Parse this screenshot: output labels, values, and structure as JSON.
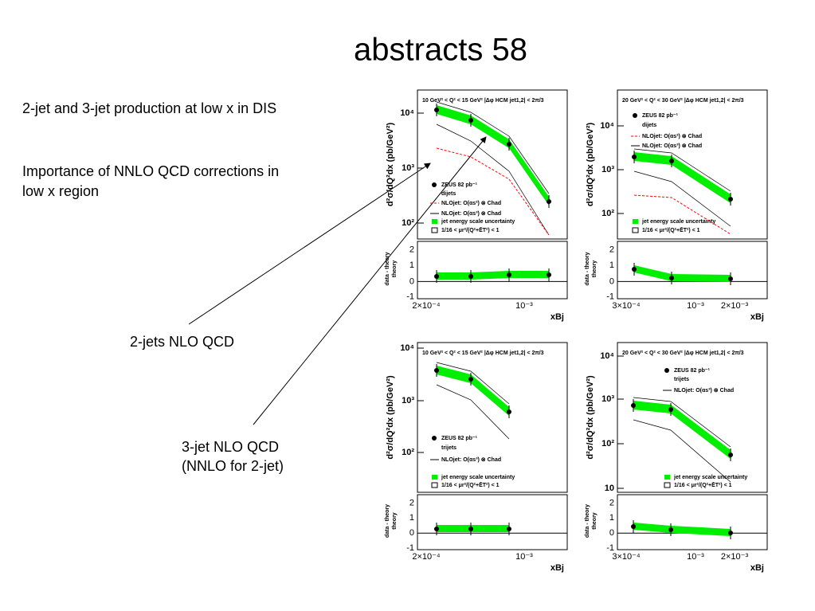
{
  "title": "abstracts 58",
  "text": {
    "line1": "2-jet and 3-jet production at low x in DIS",
    "line2": [
      "Importance of NNLO QCD corrections in",
      "low x region"
    ],
    "label_2jet": "2-jets NLO QCD",
    "label_3jet": [
      "3-jet NLO QCD",
      "(NNLO for 2-jet)"
    ]
  },
  "panels": [
    {
      "header": "10 GeV² < Q² < 15 GeV²  |Δφ HCM jet1,2| < 2π/3",
      "legend": [
        "ZEUS 82 pb⁻¹",
        "dijets",
        "NLOjet: O(αs²) ⊗ Chad",
        "NLOjet: O(αs³) ⊗ Chad",
        "jet energy scale uncertainty",
        "1/16 < μr²/(Q²+ĒT²) < 1"
      ],
      "yticks": [
        "10⁴",
        "10³",
        "10²"
      ],
      "ratio_ticks": [
        "2",
        "1",
        "0",
        "-1"
      ],
      "xticks": [
        "2×10⁻⁴",
        "10⁻³"
      ],
      "xlabel": "xBj",
      "ylabel": "d²σ/dQ²dx (pb/GeV²)",
      "ratio_ylabel": [
        "data - theory",
        "theory"
      ]
    },
    {
      "header": "20 GeV² < Q² < 30 GeV²  |Δφ HCM jet1,2| < 2π/3",
      "legend": [
        "ZEUS 82 pb⁻¹",
        "dijets",
        "NLOjet: O(αs²) ⊗ Chad",
        "NLOjet: O(αs³) ⊗ Chad",
        "jet energy scale uncertainty",
        "1/16 < μr²/(Q²+ĒT²) < 1"
      ],
      "yticks": [
        "10⁴",
        "10³",
        "10²"
      ],
      "ratio_ticks": [
        "2",
        "1",
        "0",
        "-1"
      ],
      "xticks": [
        "3×10⁻⁴",
        "10⁻³",
        "2×10⁻³"
      ],
      "xlabel": "xBj",
      "ylabel": "d²σ/dQ²dx (pb/GeV²)",
      "ratio_ylabel": [
        "data - theory",
        "theory"
      ]
    },
    {
      "header": "10 GeV² < Q² < 15 GeV²  |Δφ HCM jet1,2| < 2π/3",
      "legend": [
        "ZEUS 82 pb⁻¹",
        "trijets",
        "NLOjet: O(αs³) ⊗ Chad",
        "jet energy scale uncertainty",
        "1/16 < μr²/(Q²+ĒT²) < 1"
      ],
      "yticks": [
        "10⁴",
        "10³",
        "10²"
      ],
      "ratio_ticks": [
        "2",
        "1",
        "0",
        "-1"
      ],
      "xticks": [
        "2×10⁻⁴",
        "10⁻³"
      ],
      "xlabel": "xBj",
      "ylabel": "d²σ/dQ²dx (pb/GeV²)",
      "ratio_ylabel": [
        "data - theory",
        "theory"
      ]
    },
    {
      "header": "20 GeV² < Q² < 30 GeV²  |Δφ HCM jet1,2| < 2π/3",
      "legend": [
        "ZEUS 82 pb⁻¹",
        "trijets",
        "NLOjet: O(αs³) ⊗ Chad",
        "jet energy scale uncertainty",
        "1/16 < μr²/(Q²+ĒT²) < 1"
      ],
      "yticks": [
        "10⁴",
        "10³",
        "10²",
        "10"
      ],
      "ratio_ticks": [
        "2",
        "1",
        "0",
        "-1"
      ],
      "xticks": [
        "3×10⁻⁴",
        "10⁻³",
        "2×10⁻³"
      ],
      "xlabel": "xBj",
      "ylabel": "d²σ/dQ²dx (pb/GeV²)",
      "ratio_ylabel": [
        "data - theory",
        "theory"
      ]
    }
  ]
}
